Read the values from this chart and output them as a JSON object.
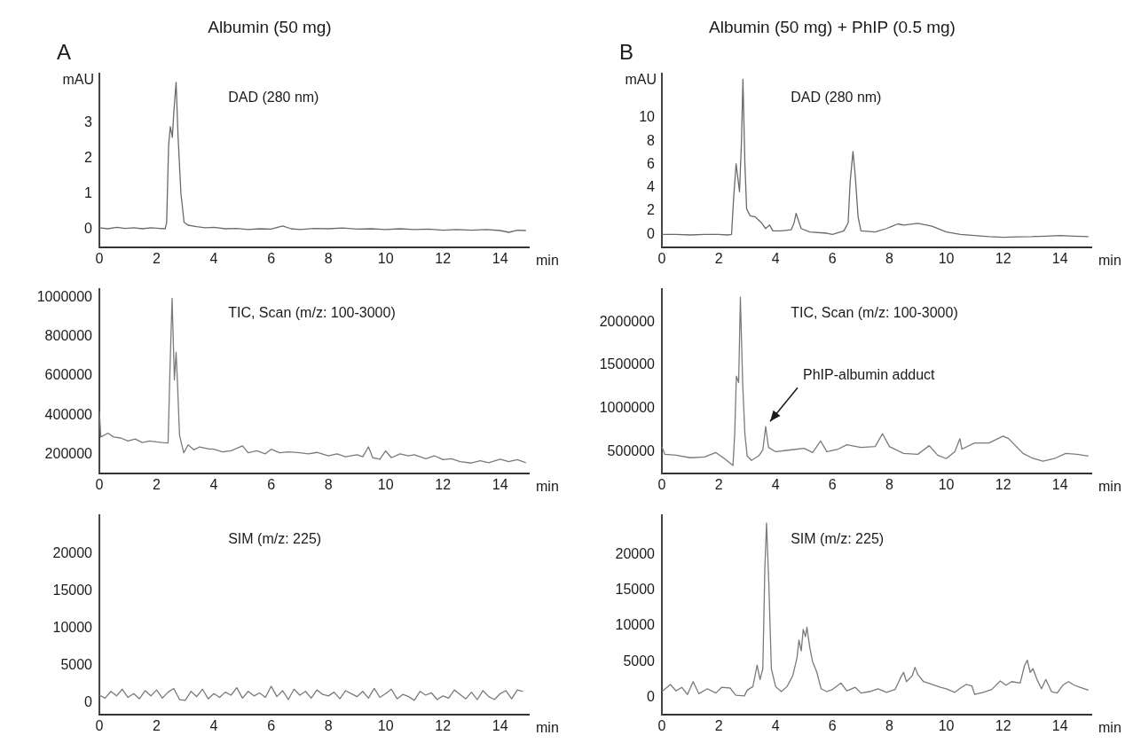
{
  "chart_data": [
    {
      "type": "line",
      "title": "Albumin (50 mg)",
      "subtitle": "DAD (280 nm)",
      "ylabel": "mAU",
      "xlabel": "min",
      "annotations": [
        "A"
      ],
      "color": "#6a6a6a",
      "xlim": [
        0,
        15
      ],
      "xticks": [
        0,
        2,
        4,
        6,
        8,
        10,
        12,
        14
      ],
      "ylim": [
        -0.5,
        4.4
      ],
      "yticks": [
        0,
        1,
        2,
        3
      ],
      "grid": false,
      "x": [
        0,
        0.3,
        0.6,
        0.9,
        1.2,
        1.5,
        1.8,
        2.1,
        2.3,
        2.35,
        2.42,
        2.48,
        2.55,
        2.6,
        2.68,
        2.75,
        2.85,
        2.96,
        3.1,
        3.4,
        3.7,
        4,
        4.4,
        4.8,
        5.2,
        5.6,
        6,
        6.4,
        6.7,
        7,
        7.5,
        8,
        8.5,
        9,
        9.5,
        10,
        10.5,
        11,
        11.5,
        12,
        12.5,
        13,
        13.5,
        14,
        14.3,
        14.6,
        14.9
      ],
      "values": [
        0.05,
        0.02,
        0.06,
        0.03,
        0.05,
        0.02,
        0.05,
        0.03,
        0.02,
        0.2,
        2.4,
        2.9,
        2.6,
        3.3,
        4.15,
        2.6,
        1.0,
        0.2,
        0.12,
        0.08,
        0.05,
        0.06,
        0.02,
        0.03,
        0,
        0.02,
        0.01,
        0.1,
        0.02,
        0,
        0.03,
        0.02,
        0.04,
        0.01,
        0.02,
        0,
        0.02,
        0,
        0.01,
        -0.02,
        0,
        -0.02,
        0,
        -0.03,
        -0.08,
        -0.02,
        -0.03
      ]
    },
    {
      "type": "line",
      "title": "Albumin (50 mg) + PhIP (0.5 mg)",
      "subtitle": "DAD (280 nm)",
      "ylabel": "mAU",
      "xlabel": "min",
      "annotations": [
        "B"
      ],
      "color": "#6a6a6a",
      "xlim": [
        0,
        15.1
      ],
      "xticks": [
        0,
        2,
        4,
        6,
        8,
        10,
        12,
        14
      ],
      "ylim": [
        -1.1,
        13.8
      ],
      "yticks": [
        0,
        2,
        4,
        6,
        8,
        10
      ],
      "grid": false,
      "x": [
        0,
        0.5,
        1,
        1.5,
        2,
        2.3,
        2.45,
        2.52,
        2.61,
        2.73,
        2.8,
        2.85,
        2.92,
        2.98,
        3.1,
        3.28,
        3.5,
        3.65,
        3.79,
        3.9,
        4.2,
        4.55,
        4.65,
        4.72,
        4.8,
        4.9,
        5.2,
        5.8,
        6.0,
        6.4,
        6.55,
        6.62,
        6.72,
        6.8,
        6.9,
        7.0,
        7.5,
        7.9,
        8.1,
        8.3,
        8.5,
        9,
        9.5,
        10,
        10.5,
        11,
        11.5,
        12,
        12.5,
        13,
        13.5,
        14,
        14.5,
        15
      ],
      "values": [
        0,
        0,
        -0.05,
        0,
        0,
        -0.05,
        0,
        3.0,
        6.05,
        3.66,
        8.0,
        13.3,
        6.0,
        2.2,
        1.6,
        1.5,
        1.0,
        0.5,
        0.8,
        0.3,
        0.3,
        0.4,
        1.0,
        1.8,
        1.2,
        0.5,
        0.2,
        0.1,
        0,
        0.3,
        1.0,
        4.5,
        7.1,
        5.0,
        1.5,
        0.3,
        0.2,
        0.5,
        0.7,
        0.9,
        0.8,
        0.95,
        0.7,
        0.2,
        0,
        -0.1,
        -0.2,
        -0.25,
        -0.22,
        -0.2,
        -0.15,
        -0.1,
        -0.15,
        -0.2
      ]
    },
    {
      "type": "line",
      "subtitle": "TIC, Scan (m/z: 100-3000)",
      "xlabel": "min",
      "color": "#7a7a7a",
      "xlim": [
        0,
        15
      ],
      "xticks": [
        0,
        2,
        4,
        6,
        8,
        10,
        12,
        14
      ],
      "ylim": [
        106000,
        1041000
      ],
      "yticks": [
        200000,
        400000,
        600000,
        800000,
        1000000
      ],
      "grid": false,
      "x": [
        0,
        0.05,
        0.3,
        0.5,
        0.75,
        1,
        1.25,
        1.5,
        1.75,
        2,
        2.2,
        2.4,
        2.47,
        2.54,
        2.62,
        2.68,
        2.73,
        2.8,
        2.88,
        2.95,
        3.1,
        3.3,
        3.5,
        3.8,
        4,
        4.3,
        4.6,
        5,
        5.2,
        5.5,
        5.8,
        6,
        6.3,
        6.6,
        7,
        7.3,
        7.6,
        8,
        8.3,
        8.6,
        9,
        9.2,
        9.4,
        9.55,
        9.8,
        10,
        10.2,
        10.5,
        10.8,
        11,
        11.4,
        11.7,
        12,
        12.3,
        12.6,
        13,
        13.3,
        13.6,
        14,
        14.3,
        14.6,
        14.9
      ],
      "values": [
        422000,
        290000,
        310000,
        290000,
        285000,
        270000,
        280000,
        262000,
        270000,
        265000,
        262000,
        260000,
        650000,
        994000,
        580000,
        720000,
        560000,
        300000,
        250000,
        210000,
        250000,
        225000,
        240000,
        230000,
        228000,
        215000,
        220000,
        245000,
        210000,
        220000,
        205000,
        228000,
        210000,
        215000,
        210000,
        205000,
        212000,
        195000,
        205000,
        190000,
        200000,
        190000,
        240000,
        185000,
        178000,
        220000,
        185000,
        205000,
        195000,
        200000,
        180000,
        195000,
        175000,
        180000,
        165000,
        158000,
        170000,
        160000,
        178000,
        165000,
        175000,
        160000
      ]
    },
    {
      "type": "line",
      "subtitle": "TIC, Scan (m/z: 100-3000)",
      "xlabel": "min",
      "color": "#7a7a7a",
      "xlim": [
        0,
        15.1
      ],
      "xticks": [
        0,
        2,
        4,
        6,
        8,
        10,
        12,
        14
      ],
      "ylim": [
        250000,
        2383000
      ],
      "yticks": [
        500000,
        1000000,
        1500000,
        2000000
      ],
      "grid": false,
      "annotations": [
        {
          "text": "PhIP-albumin adduct",
          "x": 3.65,
          "y": 790000
        }
      ],
      "x": [
        0,
        0.1,
        0.5,
        1,
        1.5,
        1.9,
        2.2,
        2.5,
        2.56,
        2.62,
        2.7,
        2.76,
        2.84,
        2.92,
        3.0,
        3.15,
        3.4,
        3.55,
        3.65,
        3.75,
        4,
        4.5,
        5,
        5.3,
        5.58,
        5.8,
        6.2,
        6.5,
        7,
        7.5,
        7.76,
        8,
        8.5,
        9,
        9.4,
        9.7,
        10,
        10.3,
        10.48,
        10.55,
        11,
        11.5,
        12,
        12.2,
        12.7,
        13,
        13.4,
        13.8,
        14.2,
        14.6,
        15
      ],
      "values": [
        560000,
        470000,
        460000,
        430000,
        440000,
        490000,
        420000,
        340000,
        700000,
        1375000,
        1300000,
        2290000,
        1300000,
        700000,
        450000,
        400000,
        450000,
        520000,
        790000,
        550000,
        500000,
        520000,
        540000,
        490000,
        625000,
        500000,
        530000,
        580000,
        550000,
        560000,
        708000,
        560000,
        480000,
        470000,
        570000,
        460000,
        420000,
        500000,
        650000,
        530000,
        600000,
        600000,
        680000,
        650000,
        480000,
        430000,
        390000,
        420000,
        480000,
        470000,
        450000
      ]
    },
    {
      "type": "line",
      "subtitle": "SIM (m/z: 225)",
      "xlabel": "min",
      "color": "#7a7a7a",
      "xlim": [
        0,
        15
      ],
      "xticks": [
        0,
        2,
        4,
        6,
        8,
        10,
        12,
        14
      ],
      "ylim": [
        -1600,
        25200
      ],
      "yticks": [
        0,
        5000,
        10000,
        15000,
        20000
      ],
      "grid": false,
      "x": [
        0,
        0.2,
        0.4,
        0.6,
        0.8,
        1,
        1.2,
        1.4,
        1.6,
        1.8,
        2,
        2.2,
        2.4,
        2.6,
        2.8,
        3,
        3.2,
        3.4,
        3.6,
        3.8,
        4,
        4.2,
        4.4,
        4.6,
        4.8,
        5,
        5.2,
        5.4,
        5.6,
        5.8,
        6,
        6.2,
        6.4,
        6.6,
        6.8,
        7,
        7.2,
        7.4,
        7.6,
        7.8,
        8,
        8.2,
        8.4,
        8.6,
        8.8,
        9,
        9.2,
        9.4,
        9.6,
        9.8,
        10,
        10.2,
        10.4,
        10.6,
        10.8,
        11,
        11.2,
        11.4,
        11.6,
        11.8,
        12,
        12.2,
        12.4,
        12.6,
        12.8,
        13,
        13.2,
        13.4,
        13.6,
        13.8,
        14,
        14.2,
        14.4,
        14.6,
        14.8
      ],
      "values": [
        1000,
        600,
        1500,
        900,
        1800,
        700,
        1200,
        500,
        1600,
        900,
        1700,
        600,
        1400,
        1900,
        400,
        300,
        1500,
        800,
        1800,
        500,
        1200,
        700,
        1400,
        1000,
        2000,
        600,
        1500,
        900,
        1300,
        700,
        2200,
        800,
        1600,
        400,
        1800,
        1000,
        1500,
        600,
        1700,
        1100,
        900,
        1400,
        500,
        1600,
        1200,
        800,
        1500,
        600,
        1900,
        700,
        1200,
        1800,
        500,
        1100,
        800,
        300,
        1500,
        1000,
        1300,
        400,
        900,
        600,
        1700,
        1100,
        500,
        1400,
        400,
        1600,
        800,
        400,
        1200,
        1600,
        500,
        1700,
        1500
      ]
    },
    {
      "type": "line",
      "subtitle": "SIM (m/z: 225)",
      "xlabel": "min",
      "color": "#7a7a7a",
      "xlim": [
        0,
        15.1
      ],
      "xticks": [
        0,
        2,
        4,
        6,
        8,
        10,
        12,
        14
      ],
      "ylim": [
        -2400,
        25500
      ],
      "yticks": [
        0,
        5000,
        10000,
        15000,
        20000
      ],
      "grid": false,
      "x": [
        0,
        0.3,
        0.5,
        0.7,
        0.9,
        1.1,
        1.3,
        1.6,
        1.9,
        2.1,
        2.4,
        2.6,
        2.9,
        3.0,
        3.2,
        3.35,
        3.45,
        3.55,
        3.62,
        3.68,
        3.76,
        3.85,
        4.0,
        4.2,
        4.4,
        4.6,
        4.75,
        4.82,
        4.9,
        4.97,
        5.05,
        5.1,
        5.2,
        5.3,
        5.45,
        5.6,
        5.8,
        6.0,
        6.3,
        6.5,
        6.8,
        7.0,
        7.3,
        7.6,
        7.9,
        8.2,
        8.4,
        8.5,
        8.6,
        8.8,
        8.9,
        9.0,
        9.2,
        9.5,
        9.8,
        10.0,
        10.3,
        10.5,
        10.7,
        10.9,
        11.0,
        11.3,
        11.6,
        11.9,
        12.1,
        12.3,
        12.6,
        12.75,
        12.85,
        12.95,
        13.05,
        13.2,
        13.35,
        13.5,
        13.7,
        13.9,
        14.1,
        14.3,
        14.5,
        14.7,
        15.0
      ],
      "values": [
        800,
        1800,
        900,
        1400,
        400,
        2200,
        500,
        1200,
        600,
        1400,
        1300,
        300,
        200,
        1000,
        1500,
        4500,
        2500,
        4000,
        18000,
        24400,
        16000,
        4000,
        1500,
        800,
        1500,
        3000,
        5500,
        8000,
        6500,
        9500,
        8500,
        9800,
        7000,
        5000,
        3500,
        1200,
        800,
        1100,
        2000,
        900,
        1400,
        600,
        800,
        1200,
        700,
        1100,
        2800,
        3500,
        2200,
        3000,
        4200,
        3200,
        2200,
        1800,
        1400,
        1200,
        700,
        1300,
        1800,
        1600,
        400,
        700,
        1100,
        2300,
        1700,
        2200,
        2000,
        4400,
        5200,
        3500,
        4000,
        2400,
        1200,
        2500,
        800,
        600,
        1700,
        2200,
        1700,
        1400,
        1000
      ]
    }
  ]
}
